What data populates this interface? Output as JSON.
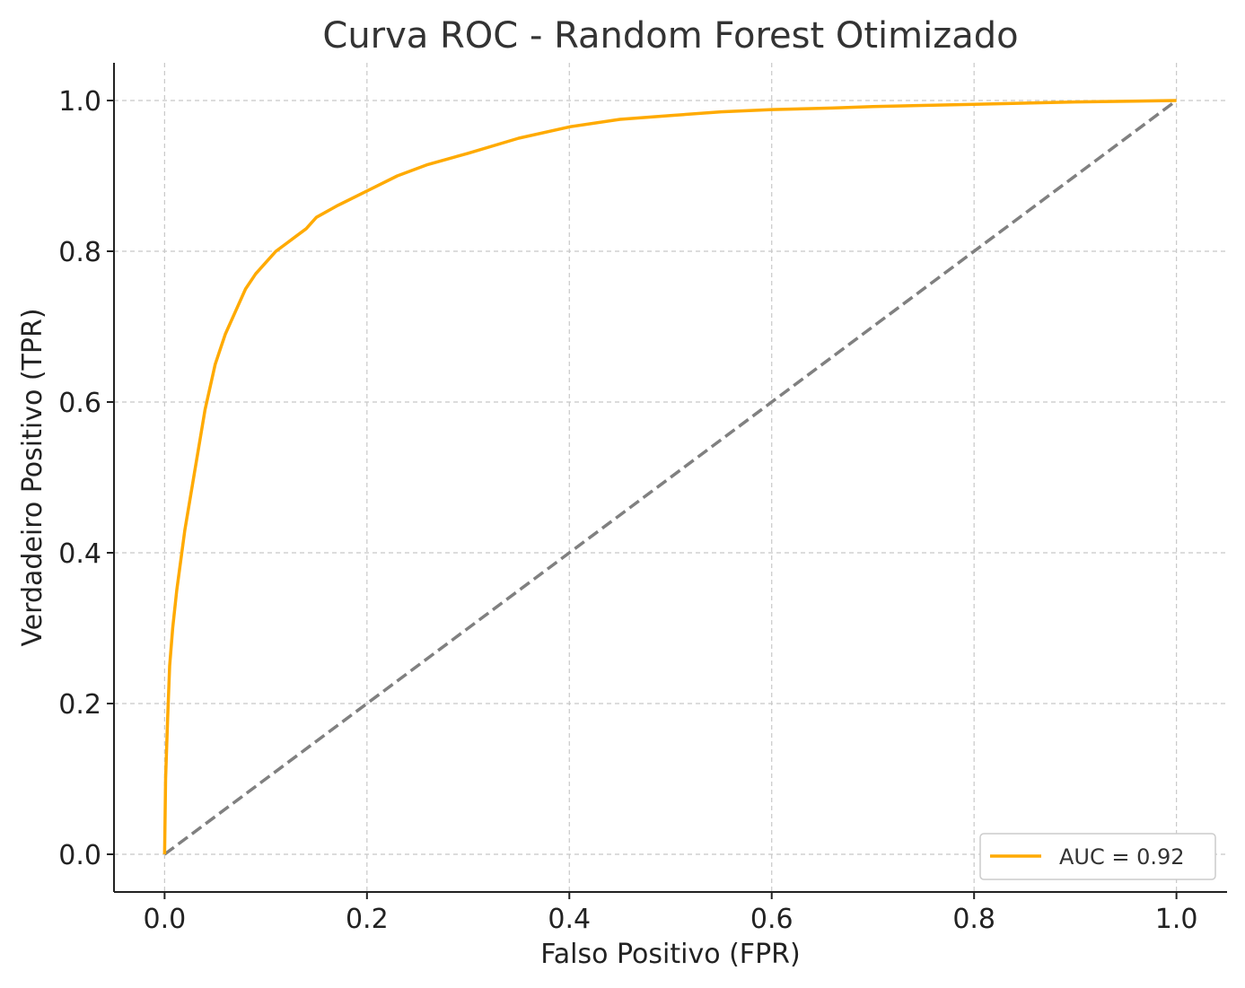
{
  "chart_data": {
    "type": "line",
    "title": "Curva ROC - Random Forest Otimizado",
    "xlabel": "Falso Positivo (FPR)",
    "ylabel": "Verdadeiro Positivo (TPR)",
    "xlim": [
      -0.05,
      1.05
    ],
    "ylim": [
      -0.05,
      1.05
    ],
    "xticks": [
      "0.0",
      "0.2",
      "0.4",
      "0.6",
      "0.8",
      "1.0"
    ],
    "yticks": [
      "0.0",
      "0.2",
      "0.4",
      "0.6",
      "0.8",
      "1.0"
    ],
    "grid": true,
    "legend_position": "lower-right",
    "series": [
      {
        "name": "AUC = 0.92",
        "color": "#FFAA00",
        "style": "solid",
        "x": [
          0.0,
          0.001,
          0.003,
          0.005,
          0.008,
          0.012,
          0.016,
          0.02,
          0.025,
          0.03,
          0.035,
          0.04,
          0.045,
          0.05,
          0.055,
          0.06,
          0.07,
          0.08,
          0.09,
          0.1,
          0.11,
          0.12,
          0.13,
          0.14,
          0.15,
          0.17,
          0.2,
          0.23,
          0.26,
          0.3,
          0.35,
          0.4,
          0.45,
          0.5,
          0.55,
          0.6,
          0.66,
          0.7,
          0.8,
          0.9,
          1.0
        ],
        "y": [
          0.0,
          0.1,
          0.18,
          0.25,
          0.3,
          0.35,
          0.39,
          0.43,
          0.47,
          0.51,
          0.55,
          0.59,
          0.62,
          0.65,
          0.67,
          0.69,
          0.72,
          0.75,
          0.77,
          0.785,
          0.8,
          0.81,
          0.82,
          0.83,
          0.845,
          0.86,
          0.88,
          0.9,
          0.915,
          0.93,
          0.95,
          0.965,
          0.975,
          0.98,
          0.985,
          0.988,
          0.99,
          0.992,
          0.995,
          0.998,
          1.0
        ]
      },
      {
        "name": "",
        "color": "#808080",
        "style": "dashed",
        "x": [
          0.0,
          1.0
        ],
        "y": [
          0.0,
          1.0
        ]
      }
    ],
    "legend": [
      {
        "label": "AUC = 0.92",
        "color": "#FFAA00"
      }
    ]
  }
}
